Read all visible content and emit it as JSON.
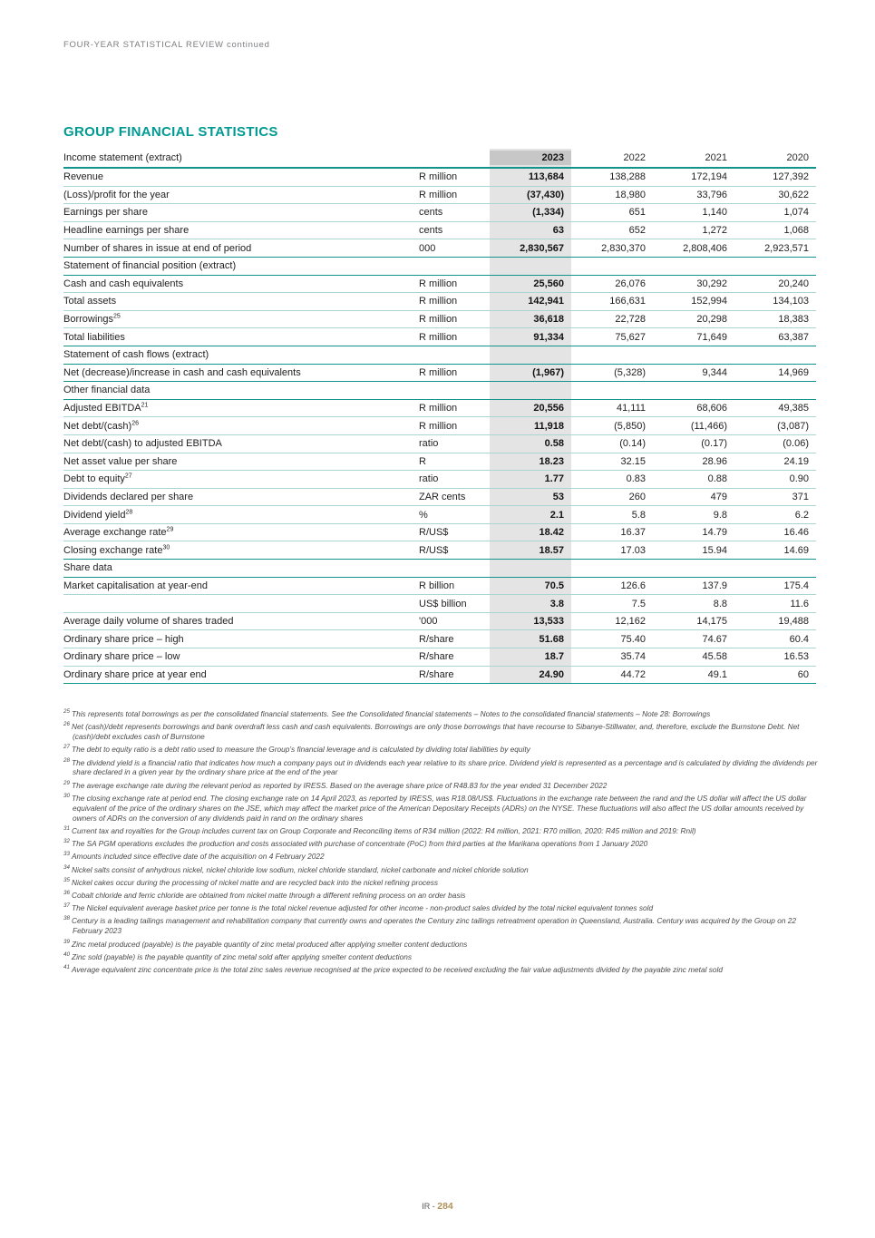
{
  "page": {
    "running_header": "FOUR-YEAR STATISTICAL REVIEW continued",
    "title": "GROUP FINANCIAL STATISTICS",
    "footer": {
      "prefix": "IR - ",
      "page_number": "284"
    }
  },
  "colors": {
    "accent_teal": "#009a93",
    "line_teal": "#12938b",
    "light_line_teal": "#a9d6d2",
    "highlight_column_gray": "#e4e4e4",
    "highlight_header_gray": "#c7c7c7",
    "page_number_gold": "#b2925a"
  },
  "table": {
    "header": {
      "label": "Income statement (extract)",
      "years": [
        "2023",
        "2022",
        "2021",
        "2020"
      ]
    },
    "rows": [
      {
        "type": "data",
        "label": "Revenue",
        "unit": "R million",
        "values": [
          "113,684",
          "138,288",
          "172,194",
          "127,392"
        ]
      },
      {
        "type": "data",
        "label": "(Loss)/profit for the year",
        "unit": "R million",
        "values": [
          "(37,430)",
          "18,980",
          "33,796",
          "30,622"
        ]
      },
      {
        "type": "data",
        "label": "Earnings per share",
        "unit": "cents",
        "values": [
          "(1,334)",
          "651",
          "1,140",
          "1,074"
        ]
      },
      {
        "type": "data",
        "label": "Headline earnings per share",
        "unit": "cents",
        "values": [
          "63",
          "652",
          "1,272",
          "1,068"
        ]
      },
      {
        "type": "data",
        "label": "Number of shares in issue at end of period",
        "unit": "000",
        "values": [
          "2,830,567",
          "2,830,370",
          "2,808,406",
          "2,923,571"
        ]
      },
      {
        "type": "section",
        "label": "Statement of financial position (extract)"
      },
      {
        "type": "data",
        "label": "Cash and cash equivalents",
        "unit": "R million",
        "values": [
          "25,560",
          "26,076",
          "30,292",
          "20,240"
        ]
      },
      {
        "type": "data",
        "label": "Total assets",
        "unit": "R million",
        "values": [
          "142,941",
          "166,631",
          "152,994",
          "134,103"
        ]
      },
      {
        "type": "data",
        "label": "Borrowings",
        "sup": "25",
        "unit": "R million",
        "values": [
          "36,618",
          "22,728",
          "20,298",
          "18,383"
        ]
      },
      {
        "type": "data",
        "label": "Total liabilities",
        "unit": "R million",
        "values": [
          "91,334",
          "75,627",
          "71,649",
          "63,387"
        ]
      },
      {
        "type": "section",
        "label": "Statement of cash flows (extract)"
      },
      {
        "type": "data",
        "label": "Net (decrease)/increase in cash and cash equivalents",
        "unit": "R million",
        "values": [
          "(1,967)",
          "(5,328)",
          "9,344",
          "14,969"
        ]
      },
      {
        "type": "section",
        "label": "Other financial data"
      },
      {
        "type": "data",
        "label": "Adjusted EBITDA",
        "sup": "21",
        "unit": "R million",
        "values": [
          "20,556",
          "41,111",
          "68,606",
          "49,385"
        ]
      },
      {
        "type": "data",
        "label": "Net debt/(cash)",
        "sup": "26",
        "unit": "R million",
        "values": [
          "11,918",
          "(5,850)",
          "(11,466)",
          "(3,087)"
        ]
      },
      {
        "type": "data",
        "label": "Net debt/(cash) to adjusted EBITDA",
        "unit": "ratio",
        "values": [
          "0.58",
          "(0.14)",
          "(0.17)",
          "(0.06)"
        ]
      },
      {
        "type": "data",
        "label": "Net asset value per share",
        "unit": "R",
        "values": [
          "18.23",
          "32.15",
          "28.96",
          "24.19"
        ]
      },
      {
        "type": "data",
        "label": "Debt to equity",
        "sup": "27",
        "unit": "ratio",
        "values": [
          "1.77",
          "0.83",
          "0.88",
          "0.90"
        ]
      },
      {
        "type": "data",
        "label": "Dividends declared per share",
        "unit": "ZAR cents",
        "values": [
          "53",
          "260",
          "479",
          "371"
        ]
      },
      {
        "type": "data",
        "label": "Dividend yield",
        "sup": "28",
        "unit": "%",
        "values": [
          "2.1",
          "5.8",
          "9.8",
          "6.2"
        ]
      },
      {
        "type": "data",
        "label": "Average exchange rate",
        "sup": "29",
        "unit": "R/US$",
        "values": [
          "18.42",
          "16.37",
          "14.79",
          "16.46"
        ]
      },
      {
        "type": "data",
        "label": "Closing exchange rate",
        "sup": "30",
        "unit": "R/US$",
        "values": [
          "18.57",
          "17.03",
          "15.94",
          "14.69"
        ]
      },
      {
        "type": "section",
        "label": "Share data"
      },
      {
        "type": "data",
        "label": "Market capitalisation at year-end",
        "unit": "R billion",
        "values": [
          "70.5",
          "126.6",
          "137.9",
          "175.4"
        ]
      },
      {
        "type": "data",
        "label": "",
        "unit": "US$ billion",
        "values": [
          "3.8",
          "7.5",
          "8.8",
          "11.6"
        ]
      },
      {
        "type": "data",
        "label": "Average daily volume of shares traded",
        "unit": "'000",
        "values": [
          "13,533",
          "12,162",
          "14,175",
          "19,488"
        ]
      },
      {
        "type": "data",
        "label": "Ordinary share price – high",
        "unit": "R/share",
        "values": [
          "51.68",
          "75.40",
          "74.67",
          "60.4"
        ]
      },
      {
        "type": "data",
        "label": "Ordinary share price – low",
        "unit": "R/share",
        "values": [
          "18.7",
          "35.74",
          "45.58",
          "16.53"
        ]
      },
      {
        "type": "data",
        "label": "Ordinary share price at year end",
        "unit": "R/share",
        "values": [
          "24.90",
          "44.72",
          "49.1",
          "60"
        ]
      }
    ]
  },
  "footnotes": [
    {
      "num": "25",
      "text": "This represents total borrowings as per the consolidated financial statements. See the Consolidated financial statements – Notes to the consolidated financial statements – Note 28: Borrowings"
    },
    {
      "num": "26",
      "text": "Net (cash)/debt represents borrowings and bank overdraft less cash and cash equivalents. Borrowings are only those borrowings that have recourse to Sibanye-Stillwater, and, therefore, exclude the Burnstone Debt. Net (cash)/debt excludes cash of Burnstone"
    },
    {
      "num": "27",
      "text": "The debt to equity ratio is a debt ratio used to measure the Group’s financial leverage and is calculated by dividing total liabilities by equity"
    },
    {
      "num": "28",
      "text": "The dividend yield is a financial ratio that indicates how much a company pays out in dividends each year relative to its share price. Dividend yield is represented as a percentage and is calculated by dividing the dividends per share declared in a given year by the ordinary share price at the end of the year"
    },
    {
      "num": "29",
      "text": "The average exchange rate during the relevant period as reported by IRESS. Based on the average share price of R48.83 for the year ended 31 December 2022"
    },
    {
      "num": "30",
      "text": "The closing exchange rate at period end. The closing exchange rate on 14 April 2023, as reported by IRESS, was R18.08/US$. Fluctuations in the exchange rate between the rand and the US dollar will affect the US dollar equivalent of the price of the ordinary shares on the JSE, which may affect the market price of the American Depositary Receipts (ADRs) on the NYSE. These fluctuations will also affect the US dollar amounts received by owners of ADRs on the conversion of any dividends paid in rand on the ordinary shares"
    },
    {
      "num": "31",
      "text": "Current tax and royalties for the Group includes current tax on Group Corporate and Reconciling items of R34 million (2022: R4 million, 2021: R70 million, 2020: R45 million and 2019: Rnil)"
    },
    {
      "num": "32",
      "text": "The SA PGM operations excludes the production and costs associated with purchase of concentrate (PoC) from third parties at the Marikana operations from 1 January 2020"
    },
    {
      "num": "33",
      "text": "Amounts included since effective date of the acquisition on 4 February 2022"
    },
    {
      "num": "34",
      "text": "Nickel salts consist of anhydrous nickel, nickel chloride low sodium, nickel chloride standard, nickel carbonate and nickel chloride solution"
    },
    {
      "num": "35",
      "text": "Nickel cakes occur during the processing of nickel matte and are recycled back into the nickel refining process"
    },
    {
      "num": "36",
      "text": "Cobalt chloride and ferric chloride are obtained from nickel matte through a different refining process on an order basis"
    },
    {
      "num": "37",
      "text": "The Nickel equivalent average basket price per tonne is the total nickel revenue adjusted for other income - non-product sales divided by the total nickel equivalent tonnes sold"
    },
    {
      "num": "38",
      "text": "Century is a leading tailings management and rehabilitation company that currently owns and operates the Century zinc tailings retreatment operation in Queensland, Australia. Century was acquired by the Group on 22 February 2023"
    },
    {
      "num": "39",
      "text": "Zinc metal produced (payable) is the payable quantity of zinc metal produced after applying smelter content deductions"
    },
    {
      "num": "40",
      "text": "Zinc sold (payable) is the payable quantity of zinc metal sold after applying smelter content deductions"
    },
    {
      "num": "41",
      "text": "Average equivalent zinc concentrate price is the total zinc sales revenue recognised at the price expected to be received excluding the fair value adjustments divided by the payable zinc metal sold"
    }
  ]
}
